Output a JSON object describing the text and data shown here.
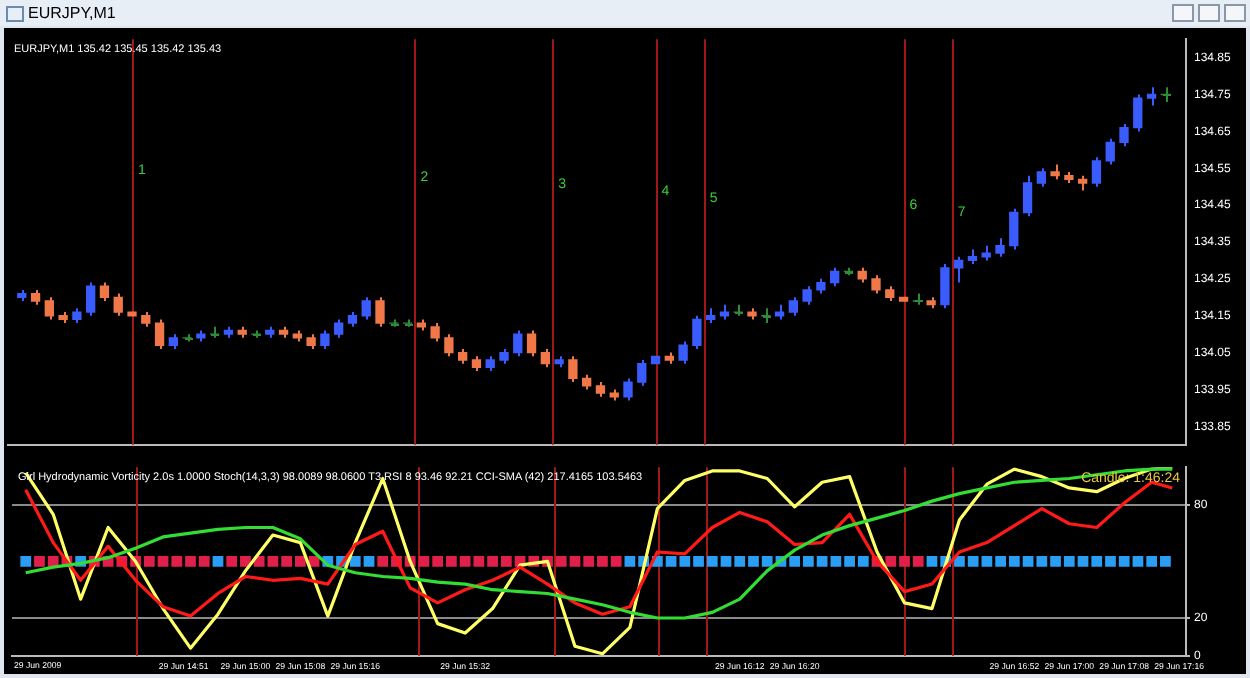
{
  "chart_data": [
    {
      "type": "candlestick",
      "title": "EURJPY,M1",
      "annotations": [
        "EURJPY,M1 135.42 135.45 135.42 135.43",
        "1",
        "2",
        "3",
        "4",
        "5",
        "6",
        "7"
      ],
      "x": [
        "2009-06-29T14:28",
        "2009-06-29T14:30",
        "2009-06-29T14:32",
        "2009-06-29T14:34",
        "2009-06-29T14:36",
        "2009-06-29T14:38",
        "2009-06-29T14:40",
        "2009-06-29T14:42",
        "2009-06-29T14:44",
        "2009-06-29T14:46",
        "2009-06-29T14:48",
        "2009-06-29T14:50",
        "2009-06-29T14:52",
        "2009-06-29T14:54",
        "2009-06-29T14:56",
        "2009-06-29T14:58",
        "2009-06-29T15:00",
        "2009-06-29T15:02",
        "2009-06-29T15:04",
        "2009-06-29T15:06",
        "2009-06-29T15:08",
        "2009-06-29T15:10",
        "2009-06-29T15:12",
        "2009-06-29T15:14",
        "2009-06-29T15:16",
        "2009-06-29T15:18",
        "2009-06-29T15:20",
        "2009-06-29T15:22",
        "2009-06-29T15:24",
        "2009-06-29T15:26",
        "2009-06-29T15:28",
        "2009-06-29T15:30",
        "2009-06-29T15:32",
        "2009-06-29T15:34",
        "2009-06-29T15:36",
        "2009-06-29T15:38",
        "2009-06-29T15:40",
        "2009-06-29T15:42",
        "2009-06-29T15:44",
        "2009-06-29T15:46",
        "2009-06-29T15:48",
        "2009-06-29T15:50",
        "2009-06-29T15:52",
        "2009-06-29T15:54",
        "2009-06-29T15:56",
        "2009-06-29T15:58",
        "2009-06-29T16:00",
        "2009-06-29T16:02",
        "2009-06-29T16:04",
        "2009-06-29T16:06",
        "2009-06-29T16:08",
        "2009-06-29T16:10",
        "2009-06-29T16:12",
        "2009-06-29T16:14",
        "2009-06-29T16:16",
        "2009-06-29T16:18",
        "2009-06-29T16:20",
        "2009-06-29T16:22",
        "2009-06-29T16:24",
        "2009-06-29T16:26",
        "2009-06-29T16:28",
        "2009-06-29T16:30",
        "2009-06-29T16:32",
        "2009-06-29T16:34",
        "2009-06-29T16:36",
        "2009-06-29T16:38",
        "2009-06-29T16:40",
        "2009-06-29T16:42",
        "2009-06-29T16:44",
        "2009-06-29T16:46",
        "2009-06-29T16:48",
        "2009-06-29T16:50",
        "2009-06-29T16:52",
        "2009-06-29T16:54",
        "2009-06-29T16:56",
        "2009-06-29T16:58",
        "2009-06-29T17:00",
        "2009-06-29T17:02",
        "2009-06-29T17:04",
        "2009-06-29T17:06",
        "2009-06-29T17:08",
        "2009-06-29T17:10",
        "2009-06-29T17:12",
        "2009-06-29T17:14"
      ],
      "ohlc": [
        [
          134.2,
          134.22,
          134.19,
          134.21
        ],
        [
          134.21,
          134.22,
          134.18,
          134.19
        ],
        [
          134.19,
          134.2,
          134.14,
          134.15
        ],
        [
          134.15,
          134.16,
          134.13,
          134.14
        ],
        [
          134.14,
          134.17,
          134.13,
          134.16
        ],
        [
          134.16,
          134.24,
          134.15,
          134.23
        ],
        [
          134.23,
          134.24,
          134.19,
          134.2
        ],
        [
          134.2,
          134.21,
          134.15,
          134.16
        ],
        [
          134.16,
          134.17,
          134.14,
          134.15
        ],
        [
          134.15,
          134.16,
          134.12,
          134.13
        ],
        [
          134.13,
          134.14,
          134.06,
          134.07
        ],
        [
          134.07,
          134.1,
          134.06,
          134.09
        ],
        [
          134.09,
          134.1,
          134.08,
          134.09
        ],
        [
          134.09,
          134.11,
          134.08,
          134.1
        ],
        [
          134.1,
          134.12,
          134.09,
          134.1
        ],
        [
          134.1,
          134.12,
          134.09,
          134.11
        ],
        [
          134.11,
          134.12,
          134.09,
          134.1
        ],
        [
          134.1,
          134.11,
          134.09,
          134.1
        ],
        [
          134.1,
          134.12,
          134.09,
          134.11
        ],
        [
          134.11,
          134.12,
          134.09,
          134.1
        ],
        [
          134.1,
          134.11,
          134.08,
          134.09
        ],
        [
          134.09,
          134.1,
          134.06,
          134.07
        ],
        [
          134.07,
          134.11,
          134.06,
          134.1
        ],
        [
          134.1,
          134.14,
          134.09,
          134.13
        ],
        [
          134.13,
          134.16,
          134.12,
          134.15
        ],
        [
          134.15,
          134.2,
          134.14,
          134.19
        ],
        [
          134.19,
          134.2,
          134.12,
          134.13
        ],
        [
          134.13,
          134.14,
          134.12,
          134.13
        ],
        [
          134.13,
          134.14,
          134.12,
          134.13
        ],
        [
          134.13,
          134.14,
          134.11,
          134.12
        ],
        [
          134.12,
          134.13,
          134.08,
          134.09
        ],
        [
          134.09,
          134.1,
          134.04,
          134.05
        ],
        [
          134.05,
          134.06,
          134.02,
          134.03
        ],
        [
          134.03,
          134.04,
          134,
          134.01
        ],
        [
          134.01,
          134.04,
          134,
          134.03
        ],
        [
          134.03,
          134.06,
          134.02,
          134.05
        ],
        [
          134.05,
          134.11,
          134.04,
          134.1
        ],
        [
          134.1,
          134.11,
          134.04,
          134.05
        ],
        [
          134.05,
          134.06,
          134.01,
          134.02
        ],
        [
          134.02,
          134.04,
          134.01,
          134.03
        ],
        [
          134.03,
          134.04,
          133.97,
          133.98
        ],
        [
          133.98,
          133.99,
          133.95,
          133.96
        ],
        [
          133.96,
          133.97,
          133.93,
          133.94
        ],
        [
          133.94,
          133.95,
          133.92,
          133.93
        ],
        [
          133.93,
          133.98,
          133.92,
          133.97
        ],
        [
          133.97,
          134.03,
          133.96,
          134.02
        ],
        [
          134.02,
          134.05,
          134.01,
          134.04
        ],
        [
          134.04,
          134.05,
          134.02,
          134.03
        ],
        [
          134.03,
          134.08,
          134.02,
          134.07
        ],
        [
          134.07,
          134.15,
          134.06,
          134.14
        ],
        [
          134.14,
          134.17,
          134.13,
          134.15
        ],
        [
          134.15,
          134.18,
          134.14,
          134.16
        ],
        [
          134.16,
          134.18,
          134.15,
          134.16
        ],
        [
          134.16,
          134.17,
          134.14,
          134.15
        ],
        [
          134.15,
          134.17,
          134.13,
          134.15
        ],
        [
          134.15,
          134.18,
          134.14,
          134.16
        ],
        [
          134.16,
          134.2,
          134.15,
          134.19
        ],
        [
          134.19,
          134.23,
          134.18,
          134.22
        ],
        [
          134.22,
          134.25,
          134.21,
          134.24
        ],
        [
          134.24,
          134.28,
          134.23,
          134.27
        ],
        [
          134.27,
          134.28,
          134.26,
          134.27
        ],
        [
          134.27,
          134.28,
          134.24,
          134.25
        ],
        [
          134.25,
          134.26,
          134.21,
          134.22
        ],
        [
          134.22,
          134.23,
          134.19,
          134.2
        ],
        [
          134.2,
          134.22,
          134.17,
          134.19
        ],
        [
          134.19,
          134.21,
          134.18,
          134.19
        ],
        [
          134.19,
          134.2,
          134.17,
          134.18
        ],
        [
          134.18,
          134.29,
          134.17,
          134.28
        ],
        [
          134.28,
          134.31,
          134.24,
          134.3
        ],
        [
          134.3,
          134.33,
          134.29,
          134.31
        ],
        [
          134.31,
          134.34,
          134.3,
          134.32
        ],
        [
          134.32,
          134.36,
          134.31,
          134.34
        ],
        [
          134.34,
          134.44,
          134.33,
          134.43
        ],
        [
          134.43,
          134.53,
          134.42,
          134.51
        ],
        [
          134.51,
          134.55,
          134.5,
          134.54
        ],
        [
          134.54,
          134.56,
          134.52,
          134.53
        ],
        [
          134.53,
          134.54,
          134.51,
          134.52
        ],
        [
          134.52,
          134.53,
          134.49,
          134.51
        ],
        [
          134.51,
          134.58,
          134.5,
          134.57
        ],
        [
          134.57,
          134.63,
          134.56,
          134.62
        ],
        [
          134.62,
          134.67,
          134.61,
          134.66
        ],
        [
          134.66,
          134.75,
          134.65,
          134.74
        ],
        [
          134.74,
          134.77,
          134.72,
          134.75
        ],
        [
          134.75,
          134.77,
          134.73,
          134.75
        ]
      ],
      "colors": [
        "#3a5cff",
        "#f07848",
        "#f07848",
        "#f07848",
        "#3a5cff",
        "#3a5cff",
        "#f07848",
        "#f07848",
        "#f07848",
        "#f07848",
        "#f07848",
        "#3a5cff",
        "#2e8b3a",
        "#3a5cff",
        "#2e8b3a",
        "#3a5cff",
        "#f07848",
        "#2e8b3a",
        "#3a5cff",
        "#f07848",
        "#f07848",
        "#f07848",
        "#3a5cff",
        "#3a5cff",
        "#3a5cff",
        "#3a5cff",
        "#f07848",
        "#2e8b3a",
        "#2e8b3a",
        "#f07848",
        "#f07848",
        "#f07848",
        "#f07848",
        "#f07848",
        "#3a5cff",
        "#3a5cff",
        "#3a5cff",
        "#f07848",
        "#f07848",
        "#3a5cff",
        "#f07848",
        "#f07848",
        "#f07848",
        "#f07848",
        "#3a5cff",
        "#3a5cff",
        "#3a5cff",
        "#f07848",
        "#3a5cff",
        "#3a5cff",
        "#3a5cff",
        "#3a5cff",
        "#2e8b3a",
        "#f07848",
        "#2e8b3a",
        "#3a5cff",
        "#3a5cff",
        "#3a5cff",
        "#3a5cff",
        "#3a5cff",
        "#2e8b3a",
        "#f07848",
        "#f07848",
        "#f07848",
        "#f07848",
        "#2e8b3a",
        "#f07848",
        "#3a5cff",
        "#3a5cff",
        "#3a5cff",
        "#3a5cff",
        "#3a5cff",
        "#3a5cff",
        "#3a5cff",
        "#3a5cff",
        "#f07848",
        "#f07848",
        "#f07848",
        "#3a5cff",
        "#3a5cff",
        "#3a5cff",
        "#3a5cff",
        "#3a5cff",
        "#2e8b3a"
      ],
      "xlim": [
        "2009-06-29T14:26",
        "2009-06-29T17:17"
      ],
      "ylim": [
        133.8,
        134.9
      ],
      "yticks": [
        133.85,
        133.95,
        134.05,
        134.15,
        134.25,
        134.35,
        134.45,
        134.55,
        134.65,
        134.75,
        134.85
      ],
      "tick_labels": "y",
      "ref_lines": [
        {
          "axis": "x",
          "value": "2009-06-29T14:44",
          "color": "#a01818"
        },
        {
          "axis": "x",
          "value": "2009-06-29T15:25",
          "color": "#a01818"
        },
        {
          "axis": "x",
          "value": "2009-06-29T15:45",
          "color": "#a01818"
        },
        {
          "axis": "x",
          "value": "2009-06-29T16:00",
          "color": "#a01818"
        },
        {
          "axis": "x",
          "value": "2009-06-29T16:07",
          "color": "#a01818"
        },
        {
          "axis": "x",
          "value": "2009-06-29T16:36",
          "color": "#a01818"
        },
        {
          "axis": "x",
          "value": "2009-06-29T16:43",
          "color": "#a01818"
        }
      ]
    },
    {
      "type": "line",
      "annotations": [
        "Girl Hydrodynamic Vorticity 2.0s 1.0000 Stoch(14,3,3) 98.0089 98.0600 T3 RSI 8 93.46 92.21 CCI-SMA (42) 217.4165 103.5463",
        "Candle: 1:46:24",
        "29 Jun 2009"
      ],
      "x": [
        "2009-06-29T14:28",
        "2009-06-29T14:32",
        "2009-06-29T14:36",
        "2009-06-29T14:40",
        "2009-06-29T14:44",
        "2009-06-29T14:48",
        "2009-06-29T14:52",
        "2009-06-29T14:56",
        "2009-06-29T15:00",
        "2009-06-29T15:04",
        "2009-06-29T15:08",
        "2009-06-29T15:12",
        "2009-06-29T15:16",
        "2009-06-29T15:20",
        "2009-06-29T15:24",
        "2009-06-29T15:28",
        "2009-06-29T15:32",
        "2009-06-29T15:36",
        "2009-06-29T15:40",
        "2009-06-29T15:44",
        "2009-06-29T15:48",
        "2009-06-29T15:52",
        "2009-06-29T15:56",
        "2009-06-29T16:00",
        "2009-06-29T16:04",
        "2009-06-29T16:08",
        "2009-06-29T16:12",
        "2009-06-29T16:16",
        "2009-06-29T16:20",
        "2009-06-29T16:24",
        "2009-06-29T16:28",
        "2009-06-29T16:32",
        "2009-06-29T16:36",
        "2009-06-29T16:40",
        "2009-06-29T16:44",
        "2009-06-29T16:48",
        "2009-06-29T16:52",
        "2009-06-29T16:56",
        "2009-06-29T17:00",
        "2009-06-29T17:04",
        "2009-06-29T17:08",
        "2009-06-29T17:12",
        "2009-06-29T17:15"
      ],
      "series": [
        {
          "color": "#33dd33",
          "values": [
            44,
            47,
            49,
            52,
            57,
            63,
            65,
            67,
            68,
            68,
            62,
            48,
            44,
            42,
            41,
            39,
            38,
            35,
            34,
            33,
            30,
            27,
            23,
            20,
            20,
            23,
            30,
            45,
            56,
            64,
            69,
            73,
            77,
            82,
            86,
            89,
            92,
            93,
            94,
            96,
            98,
            99,
            99
          ]
        },
        {
          "color": "#ff1a1a",
          "values": [
            88,
            60,
            40,
            58,
            40,
            26,
            21,
            33,
            42,
            40,
            41,
            38,
            59,
            66,
            36,
            28,
            35,
            40,
            47,
            38,
            28,
            22,
            26,
            55,
            54,
            68,
            76,
            71,
            59,
            60,
            75,
            50,
            34,
            38,
            55,
            60,
            69,
            78,
            70,
            68,
            81,
            92,
            89
          ]
        },
        {
          "color": "#ffff66",
          "values": [
            97,
            75,
            30,
            68,
            50,
            25,
            4,
            22,
            45,
            64,
            60,
            21,
            60,
            94,
            50,
            17,
            12,
            25,
            48,
            50,
            5,
            1,
            15,
            78,
            93,
            98,
            98,
            94,
            79,
            92,
            95,
            55,
            28,
            25,
            72,
            91,
            99,
            95,
            89,
            87,
            94,
            99,
            100
          ]
        },
        {
          "type": "scatter",
          "marker": "square",
          "x": [
            "2009-06-29T14:28",
            "2009-06-29T14:30",
            "2009-06-29T14:32",
            "2009-06-29T14:34",
            "2009-06-29T14:36",
            "2009-06-29T14:38",
            "2009-06-29T14:40",
            "2009-06-29T14:42",
            "2009-06-29T14:44",
            "2009-06-29T14:46",
            "2009-06-29T14:48",
            "2009-06-29T14:50",
            "2009-06-29T14:52",
            "2009-06-29T14:54",
            "2009-06-29T14:56",
            "2009-06-29T14:58",
            "2009-06-29T15:00",
            "2009-06-29T15:02",
            "2009-06-29T15:04",
            "2009-06-29T15:06",
            "2009-06-29T15:08",
            "2009-06-29T15:10",
            "2009-06-29T15:12",
            "2009-06-29T15:14",
            "2009-06-29T15:16",
            "2009-06-29T15:18",
            "2009-06-29T15:20",
            "2009-06-29T15:22",
            "2009-06-29T15:24",
            "2009-06-29T15:26",
            "2009-06-29T15:28",
            "2009-06-29T15:30",
            "2009-06-29T15:32",
            "2009-06-29T15:34",
            "2009-06-29T15:36",
            "2009-06-29T15:38",
            "2009-06-29T15:40",
            "2009-06-29T15:42",
            "2009-06-29T15:44",
            "2009-06-29T15:46",
            "2009-06-29T15:48",
            "2009-06-29T15:50",
            "2009-06-29T15:52",
            "2009-06-29T15:54",
            "2009-06-29T15:56",
            "2009-06-29T15:58",
            "2009-06-29T16:00",
            "2009-06-29T16:02",
            "2009-06-29T16:04",
            "2009-06-29T16:06",
            "2009-06-29T16:08",
            "2009-06-29T16:10",
            "2009-06-29T16:12",
            "2009-06-29T16:14",
            "2009-06-29T16:16",
            "2009-06-29T16:18",
            "2009-06-29T16:20",
            "2009-06-29T16:22",
            "2009-06-29T16:24",
            "2009-06-29T16:26",
            "2009-06-29T16:28",
            "2009-06-29T16:30",
            "2009-06-29T16:32",
            "2009-06-29T16:34",
            "2009-06-29T16:36",
            "2009-06-29T16:38",
            "2009-06-29T16:40",
            "2009-06-29T16:42",
            "2009-06-29T16:44",
            "2009-06-29T16:46",
            "2009-06-29T16:48",
            "2009-06-29T16:50",
            "2009-06-29T16:52",
            "2009-06-29T16:54",
            "2009-06-29T16:56",
            "2009-06-29T16:58",
            "2009-06-29T17:00",
            "2009-06-29T17:02",
            "2009-06-29T17:04",
            "2009-06-29T17:06",
            "2009-06-29T17:08",
            "2009-06-29T17:10",
            "2009-06-29T17:12",
            "2009-06-29T17:14"
          ],
          "values": [
            50,
            50,
            50,
            50,
            50,
            50,
            50,
            50,
            50,
            50,
            50,
            50,
            50,
            50,
            50,
            50,
            50,
            50,
            50,
            50,
            50,
            50,
            50,
            50,
            50,
            50,
            50,
            50,
            50,
            50,
            50,
            50,
            50,
            50,
            50,
            50,
            50,
            50,
            50,
            50,
            50,
            50,
            50,
            50,
            50,
            50,
            50,
            50,
            50,
            50,
            50,
            50,
            50,
            50,
            50,
            50,
            50,
            50,
            50,
            50,
            50,
            50,
            50,
            50,
            50,
            50,
            50,
            50,
            50,
            50,
            50,
            50,
            50,
            50,
            50,
            50,
            50,
            50,
            50,
            50,
            50,
            50,
            50,
            50
          ],
          "colors": [
            "#2a9df4",
            "#e0204a",
            "#e0204a",
            "#e0204a",
            "#2a9df4",
            "#e0204a",
            "#e0204a",
            "#e0204a",
            "#e0204a",
            "#e0204a",
            "#e0204a",
            "#e0204a",
            "#e0204a",
            "#e0204a",
            "#2a9df4",
            "#e0204a",
            "#e0204a",
            "#e0204a",
            "#e0204a",
            "#e0204a",
            "#e0204a",
            "#e0204a",
            "#2a9df4",
            "#2a9df4",
            "#2a9df4",
            "#2a9df4",
            "#e0204a",
            "#e0204a",
            "#e0204a",
            "#e0204a",
            "#e0204a",
            "#e0204a",
            "#e0204a",
            "#e0204a",
            "#e0204a",
            "#e0204a",
            "#e0204a",
            "#e0204a",
            "#e0204a",
            "#e0204a",
            "#e0204a",
            "#e0204a",
            "#e0204a",
            "#e0204a",
            "#2a9df4",
            "#2a9df4",
            "#2a9df4",
            "#2a9df4",
            "#2a9df4",
            "#2a9df4",
            "#2a9df4",
            "#2a9df4",
            "#2a9df4",
            "#2a9df4",
            "#2a9df4",
            "#2a9df4",
            "#2a9df4",
            "#2a9df4",
            "#2a9df4",
            "#2a9df4",
            "#2a9df4",
            "#2a9df4",
            "#e0204a",
            "#e0204a",
            "#e0204a",
            "#e0204a",
            "#2a9df4",
            "#2a9df4",
            "#2a9df4",
            "#2a9df4",
            "#2a9df4",
            "#2a9df4",
            "#2a9df4",
            "#2a9df4",
            "#2a9df4",
            "#2a9df4",
            "#2a9df4",
            "#2a9df4",
            "#2a9df4",
            "#2a9df4",
            "#2a9df4",
            "#2a9df4",
            "#2a9df4",
            "#2a9df4"
          ]
        }
      ],
      "xlim": [
        "2009-06-29T14:26",
        "2009-06-29T17:17"
      ],
      "ylim": [
        0,
        100
      ],
      "yticks": [
        0,
        20,
        80
      ],
      "grid": "y",
      "line_style": "solid",
      "xticks": [
        {
          "value": "2009-06-29T14:51",
          "label": "29 Jun 14:51"
        },
        {
          "value": "2009-06-29T15:00",
          "label": "29 Jun 15:00"
        },
        {
          "value": "2009-06-29T15:08",
          "label": "29 Jun 15:08"
        },
        {
          "value": "2009-06-29T15:16",
          "label": "29 Jun 15:16"
        },
        {
          "value": "2009-06-29T15:32",
          "label": "29 Jun 15:32"
        },
        {
          "value": "2009-06-29T16:12",
          "label": "29 Jun 16:12"
        },
        {
          "value": "2009-06-29T16:20",
          "label": "29 Jun 16:20"
        },
        {
          "value": "2009-06-29T16:52",
          "label": "29 Jun 16:52"
        },
        {
          "value": "2009-06-29T17:00",
          "label": "29 Jun 17:00"
        },
        {
          "value": "2009-06-29T17:08",
          "label": "29 Jun 17:08"
        },
        {
          "value": "2009-06-29T17:16",
          "label": "29 Jun 17:16"
        }
      ],
      "ref_lines": [
        {
          "axis": "x",
          "value": "2009-06-29T14:44",
          "color": "#a01818"
        },
        {
          "axis": "x",
          "value": "2009-06-29T15:25",
          "color": "#a01818"
        },
        {
          "axis": "x",
          "value": "2009-06-29T15:45",
          "color": "#a01818"
        },
        {
          "axis": "x",
          "value": "2009-06-29T16:00",
          "color": "#a01818"
        },
        {
          "axis": "x",
          "value": "2009-06-29T16:07",
          "color": "#a01818"
        },
        {
          "axis": "x",
          "value": "2009-06-29T16:36",
          "color": "#a01818"
        },
        {
          "axis": "x",
          "value": "2009-06-29T16:43",
          "color": "#a01818"
        }
      ]
    }
  ]
}
